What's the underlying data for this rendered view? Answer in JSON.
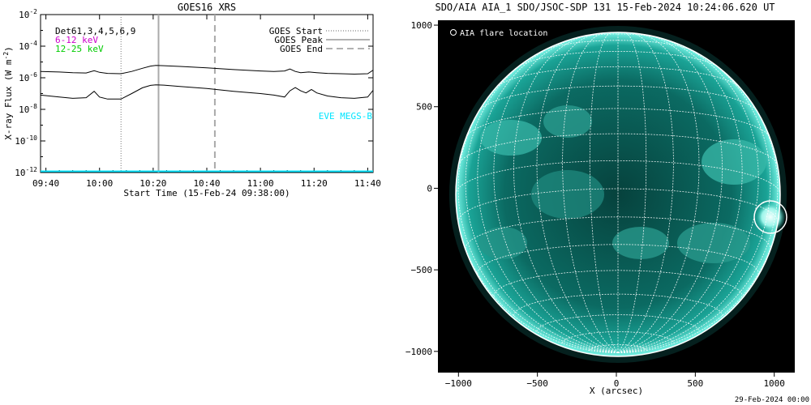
{
  "left_panel": {
    "title": "GOES16 XRS",
    "ylabel": "X-ray Flux (W m",
    "ylabel_exp": "-2",
    "ylabel_close": ")",
    "xlabel": "Start Time (15-Feb-24 09:38:00)",
    "legend_left": [
      {
        "text": "Det61,3,4,5,6,9",
        "color": "#000000"
      },
      {
        "text": "6-12 keV",
        "color": "#cc00cc"
      },
      {
        "text": "12-25 keV",
        "color": "#00cc00"
      }
    ],
    "legend_right": [
      {
        "text": "GOES Start",
        "style": "dotted"
      },
      {
        "text": "GOES Peak",
        "style": "solid"
      },
      {
        "text": "GOES End",
        "style": "dashed"
      }
    ],
    "eve_label": "EVE MEGS-B",
    "eve_color": "#00e5ff",
    "y_ticks": [
      {
        "base": "10",
        "exp": "-2"
      },
      {
        "base": "10",
        "exp": "-4"
      },
      {
        "base": "10",
        "exp": "-6"
      },
      {
        "base": "10",
        "exp": "-8"
      },
      {
        "base": "10",
        "exp": "-10"
      },
      {
        "base": "10",
        "exp": "-12"
      }
    ],
    "x_ticks": [
      "09:40",
      "10:00",
      "10:20",
      "10:40",
      "11:00",
      "11:20",
      "11:40"
    ]
  },
  "right_panel": {
    "title": "SDO/AIA AIA_1 SDO/JSOC-SDP 131 15-Feb-2024 10:24:06.620 UT",
    "legend": "AIA flare location",
    "xlabel": "X (arcsec)",
    "x_ticks": [
      "−1000",
      "−500",
      "0",
      "500",
      "1000"
    ],
    "y_ticks": [
      "1000",
      "500",
      "0",
      "−500",
      "−1000"
    ],
    "footer": "29-Feb-2024 00:00",
    "disk_color": "#0c7d74",
    "limb_color": "#6ff2e3"
  },
  "chart_data": [
    {
      "type": "line",
      "title": "GOES16 XRS",
      "xlabel": "Start Time (15-Feb-24 09:38:00)",
      "ylabel": "X-ray Flux (W m-2)",
      "y_scale": "log",
      "ylim": [
        1e-12,
        0.01
      ],
      "xlim": [
        "09:38",
        "11:42"
      ],
      "x_ticks": [
        "09:40",
        "10:00",
        "10:20",
        "10:40",
        "11:00",
        "11:20",
        "11:40"
      ],
      "vertical_lines": [
        {
          "name": "GOES Start",
          "time": "10:08",
          "style": "dotted"
        },
        {
          "name": "GOES Peak",
          "time": "10:22",
          "style": "solid"
        },
        {
          "name": "GOES End",
          "time": "10:43",
          "style": "dashed"
        }
      ],
      "series": [
        {
          "name": "",
          "color": "#000000",
          "x": [
            "09:38",
            "09:45",
            "09:50",
            "09:55",
            "09:58",
            "10:00",
            "10:03",
            "10:08",
            "10:12",
            "10:16",
            "10:19",
            "10:21",
            "10:24",
            "10:30",
            "10:40",
            "10:50",
            "11:00",
            "11:05",
            "11:09",
            "11:11",
            "11:13",
            "11:15",
            "11:18",
            "11:21",
            "11:25",
            "11:30",
            "11:35",
            "11:40",
            "11:42"
          ],
          "y": [
            2.5e-06,
            2.3e-06,
            2.1e-06,
            2e-06,
            2.8e-06,
            2.2e-06,
            1.9e-06,
            1.8e-06,
            2.5e-06,
            4e-06,
            5.5e-06,
            6e-06,
            5.8e-06,
            5.2e-06,
            4.2e-06,
            3.3e-06,
            2.7e-06,
            2.5e-06,
            2.7e-06,
            3.6e-06,
            2.5e-06,
            2.1e-06,
            2.3e-06,
            2.1e-06,
            1.9e-06,
            1.8e-06,
            1.7e-06,
            1.8e-06,
            3e-06
          ]
        },
        {
          "name": "",
          "color": "#000000",
          "x": [
            "09:38",
            "09:45",
            "09:50",
            "09:55",
            "09:58",
            "10:00",
            "10:03",
            "10:08",
            "10:12",
            "10:16",
            "10:19",
            "10:21",
            "10:24",
            "10:30",
            "10:40",
            "10:50",
            "11:00",
            "11:05",
            "11:09",
            "11:11",
            "11:13",
            "11:15",
            "11:17",
            "11:19",
            "11:21",
            "11:25",
            "11:30",
            "11:35",
            "11:40",
            "11:42"
          ],
          "y": [
            8e-08,
            6e-08,
            5e-08,
            5.5e-08,
            1.4e-07,
            6e-08,
            4.5e-08,
            4.5e-08,
            1e-07,
            2.3e-07,
            3.3e-07,
            3.6e-07,
            3.4e-07,
            2.8e-07,
            2.1e-07,
            1.4e-07,
            1e-07,
            8e-08,
            6e-08,
            1.5e-07,
            2.4e-07,
            1.5e-07,
            1.1e-07,
            1.8e-07,
            1.1e-07,
            7e-08,
            5.5e-08,
            5e-08,
            6e-08,
            1.6e-07
          ]
        },
        {
          "name": "EVE MEGS-B",
          "color": "#00e5ff",
          "x": [
            "09:38",
            "11:42"
          ],
          "y": [
            1.2e-12,
            1.2e-12
          ]
        }
      ]
    },
    {
      "type": "heatmap",
      "title": "SDO/AIA AIA_1 SDO/JSOC-SDP 131 15-Feb-2024 10:24:06.620 UT",
      "xlabel": "X (arcsec)",
      "ylabel": "",
      "xlim": [
        -1130,
        1130
      ],
      "ylim": [
        -1130,
        1030
      ],
      "x_ticks": [
        -1000,
        -500,
        0,
        500,
        1000
      ],
      "y_ticks": [
        1000,
        500,
        0,
        -500,
        -1000
      ],
      "solar_radius_arcsec": 975,
      "grid_spacing_deg": 10,
      "flare_location": {
        "x": 945,
        "y": -140,
        "label": "AIA flare location"
      }
    }
  ]
}
